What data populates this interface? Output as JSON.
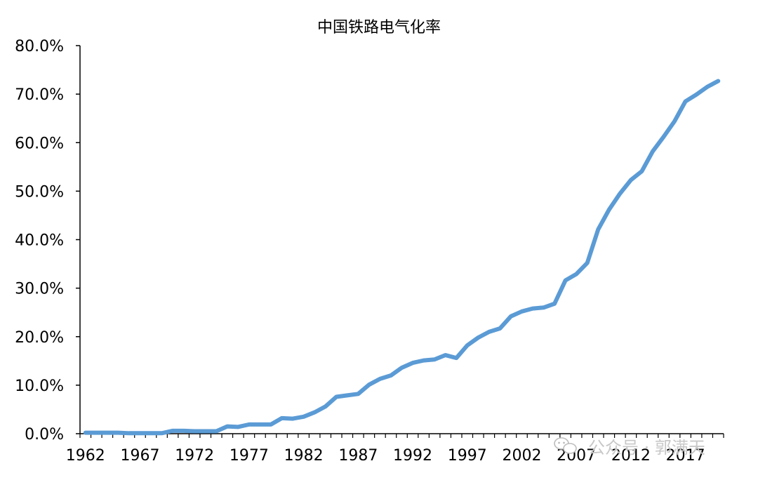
{
  "chart_data": {
    "type": "line",
    "title": "中国铁路电气化率",
    "xlabel": "",
    "ylabel": "",
    "x": [
      1962,
      1963,
      1964,
      1965,
      1966,
      1967,
      1968,
      1969,
      1970,
      1971,
      1972,
      1973,
      1974,
      1975,
      1976,
      1977,
      1978,
      1979,
      1980,
      1981,
      1982,
      1983,
      1984,
      1985,
      1986,
      1987,
      1988,
      1989,
      1990,
      1991,
      1992,
      1993,
      1994,
      1995,
      1996,
      1997,
      1998,
      1999,
      2000,
      2001,
      2002,
      2003,
      2004,
      2005,
      2006,
      2007,
      2008,
      2009,
      2010,
      2011,
      2012,
      2013,
      2014,
      2015,
      2016,
      2017,
      2018,
      2019,
      2020
    ],
    "series": [
      {
        "name": "",
        "values": [
          0.2,
          0.2,
          0.2,
          0.2,
          0.1,
          0.1,
          0.1,
          0.1,
          0.6,
          0.6,
          0.5,
          0.5,
          0.5,
          1.5,
          1.4,
          1.9,
          1.9,
          1.9,
          3.2,
          3.1,
          3.5,
          4.4,
          5.6,
          7.6,
          7.9,
          8.2,
          10.1,
          11.3,
          12.0,
          13.6,
          14.6,
          15.1,
          15.3,
          16.2,
          15.6,
          18.2,
          19.8,
          21.0,
          21.7,
          24.2,
          25.2,
          25.8,
          26.0,
          26.8,
          31.6,
          32.9,
          35.2,
          42.1,
          46.2,
          49.5,
          52.3,
          54.1,
          58.2,
          61.2,
          64.4,
          68.5,
          69.9,
          71.5,
          72.7
        ]
      }
    ],
    "xticks": [
      "1962",
      "1967",
      "1972",
      "1977",
      "1982",
      "1987",
      "1992",
      "1997",
      "2002",
      "2007",
      "2012",
      "2017"
    ],
    "yticks": [
      "0.0%",
      "10.0%",
      "20.0%",
      "30.0%",
      "40.0%",
      "50.0%",
      "60.0%",
      "70.0%",
      "80.0%"
    ],
    "ylim": [
      0,
      80
    ],
    "xlim": [
      1962,
      2020
    ],
    "grid": false,
    "legend": "none",
    "line_color": "#5b9bd5",
    "axis_color": "#000000"
  },
  "watermark": {
    "text": "公众号 · 郭满天"
  }
}
